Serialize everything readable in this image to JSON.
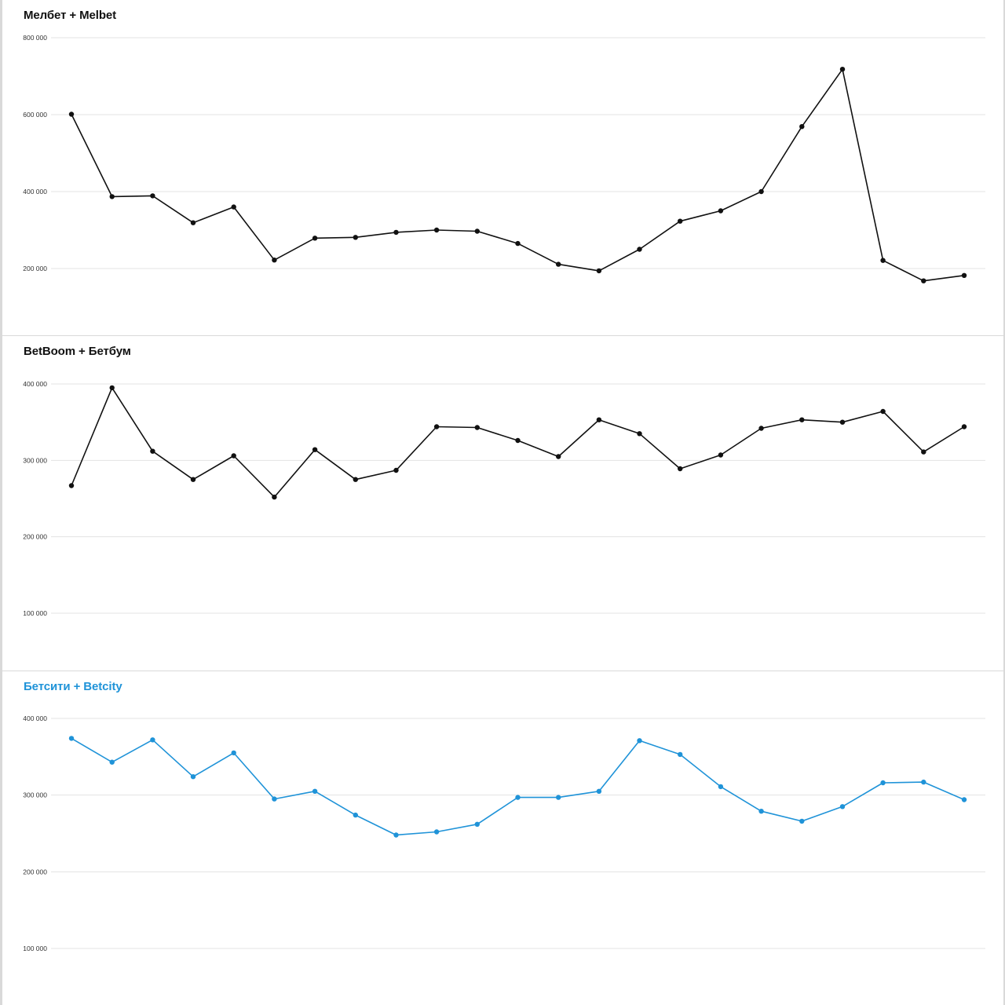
{
  "colors": {
    "page_background": "#d9d9d9",
    "panel_background": "#ffffff",
    "gridline": "#e3e3e3",
    "black_series": "#111111",
    "blue_series": "#1f93d8"
  },
  "chart_data": [
    {
      "type": "line",
      "title": "Мелбет + Melbet",
      "title_color": "#111111",
      "xlabel": "",
      "ylabel": "",
      "ylim": [
        0,
        800000
      ],
      "yticks": [
        200000,
        400000,
        600000,
        800000
      ],
      "ytick_labels": [
        "200 000",
        "400 000",
        "600 000",
        "800 000"
      ],
      "grid": true,
      "legend": "none",
      "series": [
        {
          "name": "Мелбет + Melbet",
          "color": "#111111",
          "values": [
            601000,
            387000,
            389000,
            319000,
            360000,
            222000,
            279000,
            281000,
            294000,
            300000,
            297000,
            265000,
            211000,
            194000,
            250000,
            323000,
            350000,
            400000,
            569000,
            718000,
            221000,
            168000,
            182000
          ]
        }
      ]
    },
    {
      "type": "line",
      "title": "BetBoom + Бетбум",
      "title_color": "#111111",
      "xlabel": "",
      "ylabel": "",
      "ylim": [
        0,
        400000
      ],
      "yticks": [
        100000,
        200000,
        300000,
        400000
      ],
      "ytick_labels": [
        "100 000",
        "200 000",
        "300 000",
        "400 000"
      ],
      "grid": true,
      "legend": "none",
      "series": [
        {
          "name": "BetBoom + Бетбум",
          "color": "#111111",
          "values": [
            267000,
            395000,
            312000,
            275000,
            306000,
            252000,
            314000,
            275000,
            287000,
            344000,
            343000,
            326000,
            305000,
            353000,
            335000,
            289000,
            307000,
            342000,
            353000,
            350000,
            364000,
            311000,
            344000
          ]
        }
      ]
    },
    {
      "type": "line",
      "title": "Бетсити + Betcity",
      "title_color": "#1f93d8",
      "xlabel": "",
      "ylabel": "",
      "ylim": [
        0,
        400000
      ],
      "yticks": [
        100000,
        200000,
        300000,
        400000
      ],
      "ytick_labels": [
        "100 000",
        "200 000",
        "300 000",
        "400 000"
      ],
      "grid": true,
      "legend": "none",
      "series": [
        {
          "name": "Бетсити + Betcity",
          "color": "#1f93d8",
          "values": [
            374000,
            343000,
            372000,
            324000,
            355000,
            295000,
            305000,
            274000,
            248000,
            252000,
            262000,
            297000,
            297000,
            305000,
            371000,
            353000,
            311000,
            279000,
            266000,
            285000,
            316000,
            317000,
            294000
          ]
        }
      ]
    }
  ]
}
